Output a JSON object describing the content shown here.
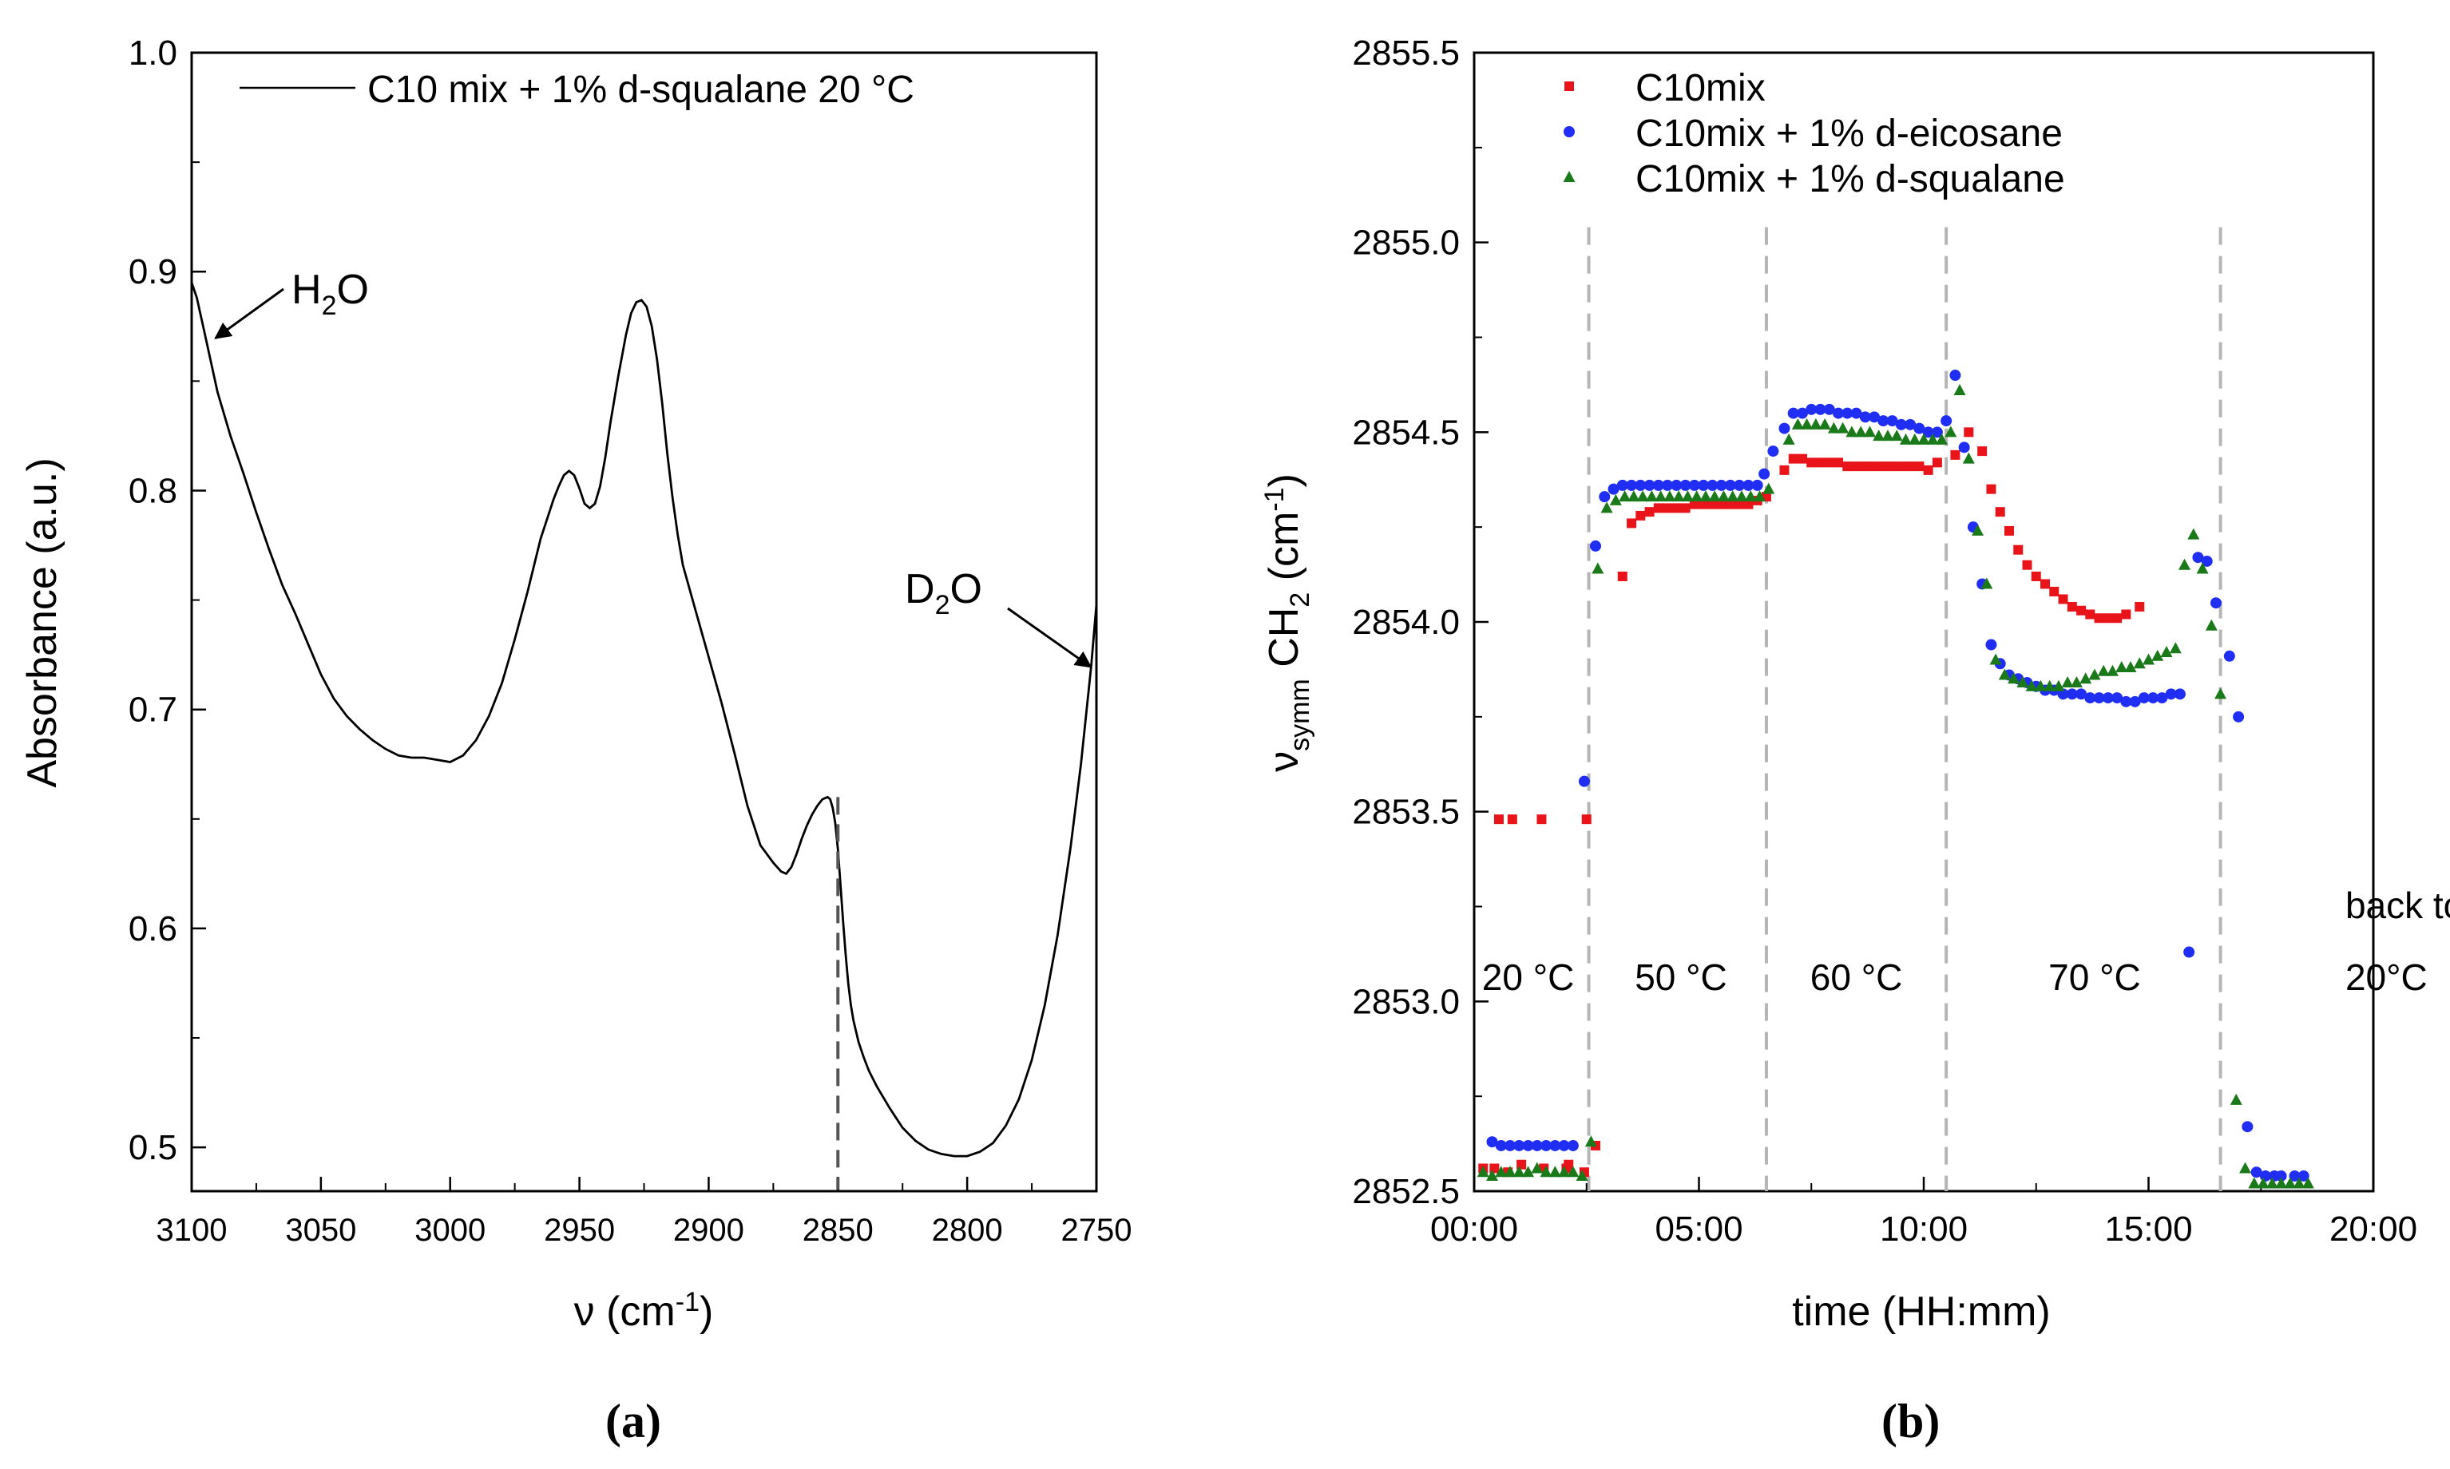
{
  "chart_data": [
    {
      "type": "line",
      "panel_label": "a",
      "xlabel": "ν (cm",
      "xlabel_sup": "-1",
      "xlabel_close": ")",
      "ylabel": "Absorbance (a.u.)",
      "xlim": [
        3100,
        2750
      ],
      "ylim": [
        0.48,
        1.0
      ],
      "x_ticks": [
        "3100",
        "3050",
        "3000",
        "2950",
        "2900",
        "2850",
        "2800",
        "2750"
      ],
      "x_tick_values": [
        3100,
        3050,
        3000,
        2950,
        2900,
        2850,
        2800,
        2750
      ],
      "y_ticks": [
        "0.5",
        "0.6",
        "0.7",
        "0.8",
        "0.9",
        "1.0"
      ],
      "y_tick_values": [
        0.5,
        0.6,
        0.7,
        0.8,
        0.9,
        1.0
      ],
      "legend": [
        "C10 mix + 1% d-squalane 20 °C"
      ],
      "annotations": [
        {
          "base": "H",
          "sub": "2",
          "rest": "O",
          "arrow_to": [
            3092,
            0.874
          ]
        },
        {
          "base": "D",
          "sub": "2",
          "rest": "O",
          "arrow_to": [
            2751,
            0.718
          ]
        }
      ],
      "marker_line_x": 2850,
      "series": [
        {
          "name": "C10 mix + 1% d-squalane 20 °C",
          "x": [
            3100,
            3098,
            3095,
            3090,
            3085,
            3080,
            3075,
            3070,
            3065,
            3060,
            3055,
            3050,
            3045,
            3040,
            3035,
            3030,
            3025,
            3020,
            3015,
            3010,
            3005,
            3000,
            2995,
            2990,
            2985,
            2980,
            2975,
            2970,
            2965,
            2960,
            2958,
            2956,
            2954,
            2952,
            2950,
            2948,
            2946,
            2944,
            2942,
            2940,
            2938,
            2935,
            2932,
            2930,
            2928,
            2926,
            2924,
            2922,
            2920,
            2918,
            2916,
            2914,
            2912,
            2910,
            2905,
            2900,
            2895,
            2890,
            2885,
            2880,
            2875,
            2872,
            2870,
            2868,
            2866,
            2864,
            2862,
            2860,
            2858,
            2856,
            2854,
            2853,
            2852,
            2851,
            2850,
            2849,
            2848,
            2847,
            2846,
            2845,
            2844,
            2842,
            2840,
            2838,
            2835,
            2830,
            2825,
            2820,
            2815,
            2810,
            2805,
            2800,
            2795,
            2790,
            2785,
            2780,
            2775,
            2770,
            2765,
            2760,
            2756,
            2752,
            2750
          ],
          "y": [
            0.895,
            0.888,
            0.872,
            0.845,
            0.825,
            0.808,
            0.79,
            0.773,
            0.757,
            0.744,
            0.73,
            0.716,
            0.705,
            0.697,
            0.691,
            0.686,
            0.682,
            0.679,
            0.678,
            0.678,
            0.677,
            0.676,
            0.679,
            0.686,
            0.697,
            0.712,
            0.732,
            0.754,
            0.778,
            0.796,
            0.802,
            0.807,
            0.809,
            0.807,
            0.801,
            0.794,
            0.792,
            0.794,
            0.802,
            0.815,
            0.831,
            0.852,
            0.871,
            0.881,
            0.886,
            0.887,
            0.884,
            0.875,
            0.86,
            0.84,
            0.817,
            0.797,
            0.78,
            0.766,
            0.745,
            0.724,
            0.703,
            0.68,
            0.656,
            0.638,
            0.63,
            0.626,
            0.625,
            0.628,
            0.634,
            0.641,
            0.647,
            0.652,
            0.656,
            0.659,
            0.66,
            0.659,
            0.655,
            0.648,
            0.636,
            0.62,
            0.603,
            0.588,
            0.575,
            0.565,
            0.558,
            0.548,
            0.541,
            0.535,
            0.528,
            0.518,
            0.509,
            0.503,
            0.499,
            0.497,
            0.496,
            0.496,
            0.498,
            0.502,
            0.51,
            0.522,
            0.54,
            0.565,
            0.597,
            0.637,
            0.675,
            0.72,
            0.748
          ]
        }
      ]
    },
    {
      "type": "scatter",
      "panel_label": "b",
      "xlabel": "time (HH:mm)",
      "ylabel_main": "ν",
      "ylabel_sub": "symm",
      "ylabel_mid": " CH",
      "ylabel_sub2": "2",
      "ylabel_unit": " (cm",
      "ylabel_sup": "-1",
      "ylabel_close": ")",
      "xlim": [
        0,
        20
      ],
      "ylim": [
        2852.5,
        2855.5
      ],
      "x_ticks": [
        "00:00",
        "05:00",
        "10:00",
        "15:00",
        "20:00"
      ],
      "x_tick_values": [
        0,
        5,
        10,
        15,
        20
      ],
      "y_ticks": [
        "2852.5",
        "2853.0",
        "2853.5",
        "2854.0",
        "2854.5",
        "2855.0",
        "2855.5"
      ],
      "y_tick_values": [
        2852.5,
        2853.0,
        2853.5,
        2854.0,
        2854.5,
        2855.0,
        2855.5
      ],
      "legend_position": "top-left",
      "phase_boundaries": [
        2.55,
        6.5,
        10.5,
        16.6
      ],
      "phase_labels": [
        {
          "text": "20 °C",
          "x": 1.2
        },
        {
          "text": "50 °C",
          "x": 4.6
        },
        {
          "text": "60 °C",
          "x": 8.5
        },
        {
          "text": "70 °C",
          "x": 13.8
        }
      ],
      "phase_label_last": {
        "line1": "back to",
        "line2": "20°C",
        "x": 19.2
      },
      "series": [
        {
          "name": "C10mix",
          "color": "#e8141a",
          "marker": "square",
          "x": [
            0.2,
            0.55,
            0.85,
            1.5,
            2.1,
            2.5,
            2.7,
            3.3,
            3.5,
            3.7,
            3.9,
            4.1,
            4.3,
            4.5,
            4.7,
            4.9,
            5.1,
            5.3,
            5.5,
            5.7,
            5.9,
            6.1,
            6.3,
            6.5,
            6.9,
            7.1,
            7.3,
            7.5,
            7.7,
            7.9,
            8.1,
            8.3,
            8.5,
            8.7,
            8.9,
            9.1,
            9.3,
            9.5,
            9.7,
            9.9,
            10.1,
            10.3,
            10.7,
            11.0,
            11.3,
            11.5,
            11.7,
            11.9,
            12.1,
            12.3,
            12.5,
            12.7,
            12.9,
            13.1,
            13.3,
            13.5,
            13.7,
            13.9,
            14.1,
            14.3,
            14.5,
            14.8,
            0.45,
            0.75,
            1.05,
            1.55,
            2.05,
            2.45
          ],
          "y": [
            2852.56,
            2853.48,
            2853.48,
            2853.48,
            2852.57,
            2853.48,
            2852.62,
            2854.12,
            2854.26,
            2854.28,
            2854.29,
            2854.3,
            2854.3,
            2854.3,
            2854.3,
            2854.31,
            2854.31,
            2854.31,
            2854.31,
            2854.31,
            2854.31,
            2854.31,
            2854.32,
            2854.33,
            2854.4,
            2854.43,
            2854.43,
            2854.42,
            2854.42,
            2854.42,
            2854.42,
            2854.41,
            2854.41,
            2854.41,
            2854.41,
            2854.41,
            2854.41,
            2854.41,
            2854.41,
            2854.41,
            2854.4,
            2854.42,
            2854.44,
            2854.5,
            2854.45,
            2854.35,
            2854.29,
            2854.24,
            2854.19,
            2854.15,
            2854.12,
            2854.1,
            2854.08,
            2854.06,
            2854.04,
            2854.03,
            2854.02,
            2854.01,
            2854.01,
            2854.01,
            2854.02,
            2854.04,
            2852.56,
            2852.55,
            2852.57,
            2852.56,
            2852.56,
            2852.55
          ]
        },
        {
          "name": "C10mix + 1% d-eicosane",
          "color": "#1f2ef2",
          "marker": "circle",
          "x": [
            0.4,
            0.6,
            0.8,
            1.0,
            1.2,
            1.4,
            1.6,
            1.8,
            2.0,
            2.2,
            2.45,
            2.7,
            2.9,
            3.1,
            3.3,
            3.5,
            3.7,
            3.9,
            4.1,
            4.3,
            4.5,
            4.7,
            4.9,
            5.1,
            5.3,
            5.5,
            5.7,
            5.9,
            6.1,
            6.3,
            6.45,
            6.65,
            6.9,
            7.1,
            7.3,
            7.5,
            7.7,
            7.9,
            8.1,
            8.3,
            8.5,
            8.7,
            8.9,
            9.1,
            9.3,
            9.5,
            9.7,
            9.9,
            10.1,
            10.3,
            10.5,
            10.7,
            10.9,
            11.1,
            11.3,
            11.5,
            11.7,
            11.9,
            12.1,
            12.3,
            12.5,
            12.7,
            12.9,
            13.1,
            13.3,
            13.5,
            13.7,
            13.9,
            14.1,
            14.3,
            14.5,
            14.7,
            14.9,
            15.1,
            15.3,
            15.5,
            15.7,
            15.9,
            16.1,
            16.3,
            16.5,
            16.8,
            17.0,
            17.2,
            17.4,
            17.6,
            17.8,
            17.95,
            18.25,
            18.45
          ],
          "y": [
            2852.63,
            2852.62,
            2852.62,
            2852.62,
            2852.62,
            2852.62,
            2852.62,
            2852.62,
            2852.62,
            2852.62,
            2853.58,
            2854.2,
            2854.33,
            2854.35,
            2854.36,
            2854.36,
            2854.36,
            2854.36,
            2854.36,
            2854.36,
            2854.36,
            2854.36,
            2854.36,
            2854.36,
            2854.36,
            2854.36,
            2854.36,
            2854.36,
            2854.36,
            2854.36,
            2854.39,
            2854.45,
            2854.51,
            2854.55,
            2854.55,
            2854.56,
            2854.56,
            2854.56,
            2854.55,
            2854.55,
            2854.55,
            2854.54,
            2854.54,
            2854.53,
            2854.53,
            2854.52,
            2854.52,
            2854.51,
            2854.5,
            2854.5,
            2854.53,
            2854.65,
            2854.46,
            2854.25,
            2854.1,
            2853.94,
            2853.89,
            2853.86,
            2853.85,
            2853.84,
            2853.83,
            2853.82,
            2853.82,
            2853.81,
            2853.81,
            2853.81,
            2853.8,
            2853.8,
            2853.8,
            2853.8,
            2853.79,
            2853.79,
            2853.8,
            2853.8,
            2853.8,
            2853.81,
            2853.81,
            2853.13,
            2854.17,
            2854.16,
            2854.05,
            2853.91,
            2853.75,
            2852.67,
            2852.55,
            2852.54,
            2852.54,
            2852.54,
            2852.54,
            2852.54
          ],
          "note": "see drawing script for rendered subset"
        },
        {
          "name": "C10mix + 1% d-squalane",
          "color": "#1a7a1a",
          "marker": "triangle",
          "x": [
            0.2,
            0.4,
            0.6,
            0.8,
            1.0,
            1.2,
            1.4,
            1.6,
            1.8,
            2.0,
            2.2,
            2.4,
            2.6,
            2.75,
            2.95,
            3.15,
            3.35,
            3.55,
            3.75,
            3.95,
            4.15,
            4.35,
            4.55,
            4.75,
            4.95,
            5.15,
            5.35,
            5.55,
            5.75,
            5.95,
            6.15,
            6.35,
            6.55,
            7.0,
            7.2,
            7.4,
            7.6,
            7.8,
            8.0,
            8.2,
            8.4,
            8.6,
            8.8,
            9.0,
            9.2,
            9.4,
            9.6,
            9.8,
            10.0,
            10.2,
            10.4,
            10.6,
            10.8,
            11.0,
            11.2,
            11.4,
            11.6,
            11.8,
            12.0,
            12.2,
            12.4,
            12.6,
            12.8,
            13.0,
            13.2,
            13.4,
            13.6,
            13.8,
            14.0,
            14.2,
            14.4,
            14.6,
            14.8,
            15.0,
            15.2,
            15.4,
            15.6,
            15.8,
            16.0,
            16.2,
            16.4,
            16.6,
            16.95,
            17.15,
            17.35,
            17.55,
            17.75,
            17.95,
            18.15,
            18.35,
            18.55
          ],
          "y": [
            2852.55,
            2852.54,
            2852.55,
            2852.55,
            2852.55,
            2852.55,
            2852.56,
            2852.55,
            2852.55,
            2852.55,
            2852.55,
            2852.54,
            2852.63,
            2854.14,
            2854.3,
            2854.32,
            2854.33,
            2854.33,
            2854.33,
            2854.33,
            2854.33,
            2854.33,
            2854.33,
            2854.33,
            2854.33,
            2854.33,
            2854.33,
            2854.33,
            2854.33,
            2854.33,
            2854.33,
            2854.33,
            2854.35,
            2854.48,
            2854.52,
            2854.52,
            2854.52,
            2854.52,
            2854.51,
            2854.51,
            2854.5,
            2854.5,
            2854.5,
            2854.49,
            2854.49,
            2854.49,
            2854.48,
            2854.48,
            2854.48,
            2854.48,
            2854.48,
            2854.5,
            2854.61,
            2854.43,
            2854.24,
            2854.1,
            2853.9,
            2853.86,
            2853.85,
            2853.84,
            2853.83,
            2853.83,
            2853.83,
            2853.83,
            2853.84,
            2853.84,
            2853.85,
            2853.86,
            2853.87,
            2853.87,
            2853.88,
            2853.88,
            2853.89,
            2853.9,
            2853.91,
            2853.92,
            2853.93,
            2854.15,
            2854.23,
            2854.14,
            2853.99,
            2853.81,
            2852.74,
            2852.56,
            2852.52,
            2852.52,
            2852.52,
            2852.52,
            2852.52,
            2852.52,
            2852.52
          ]
        }
      ]
    }
  ]
}
